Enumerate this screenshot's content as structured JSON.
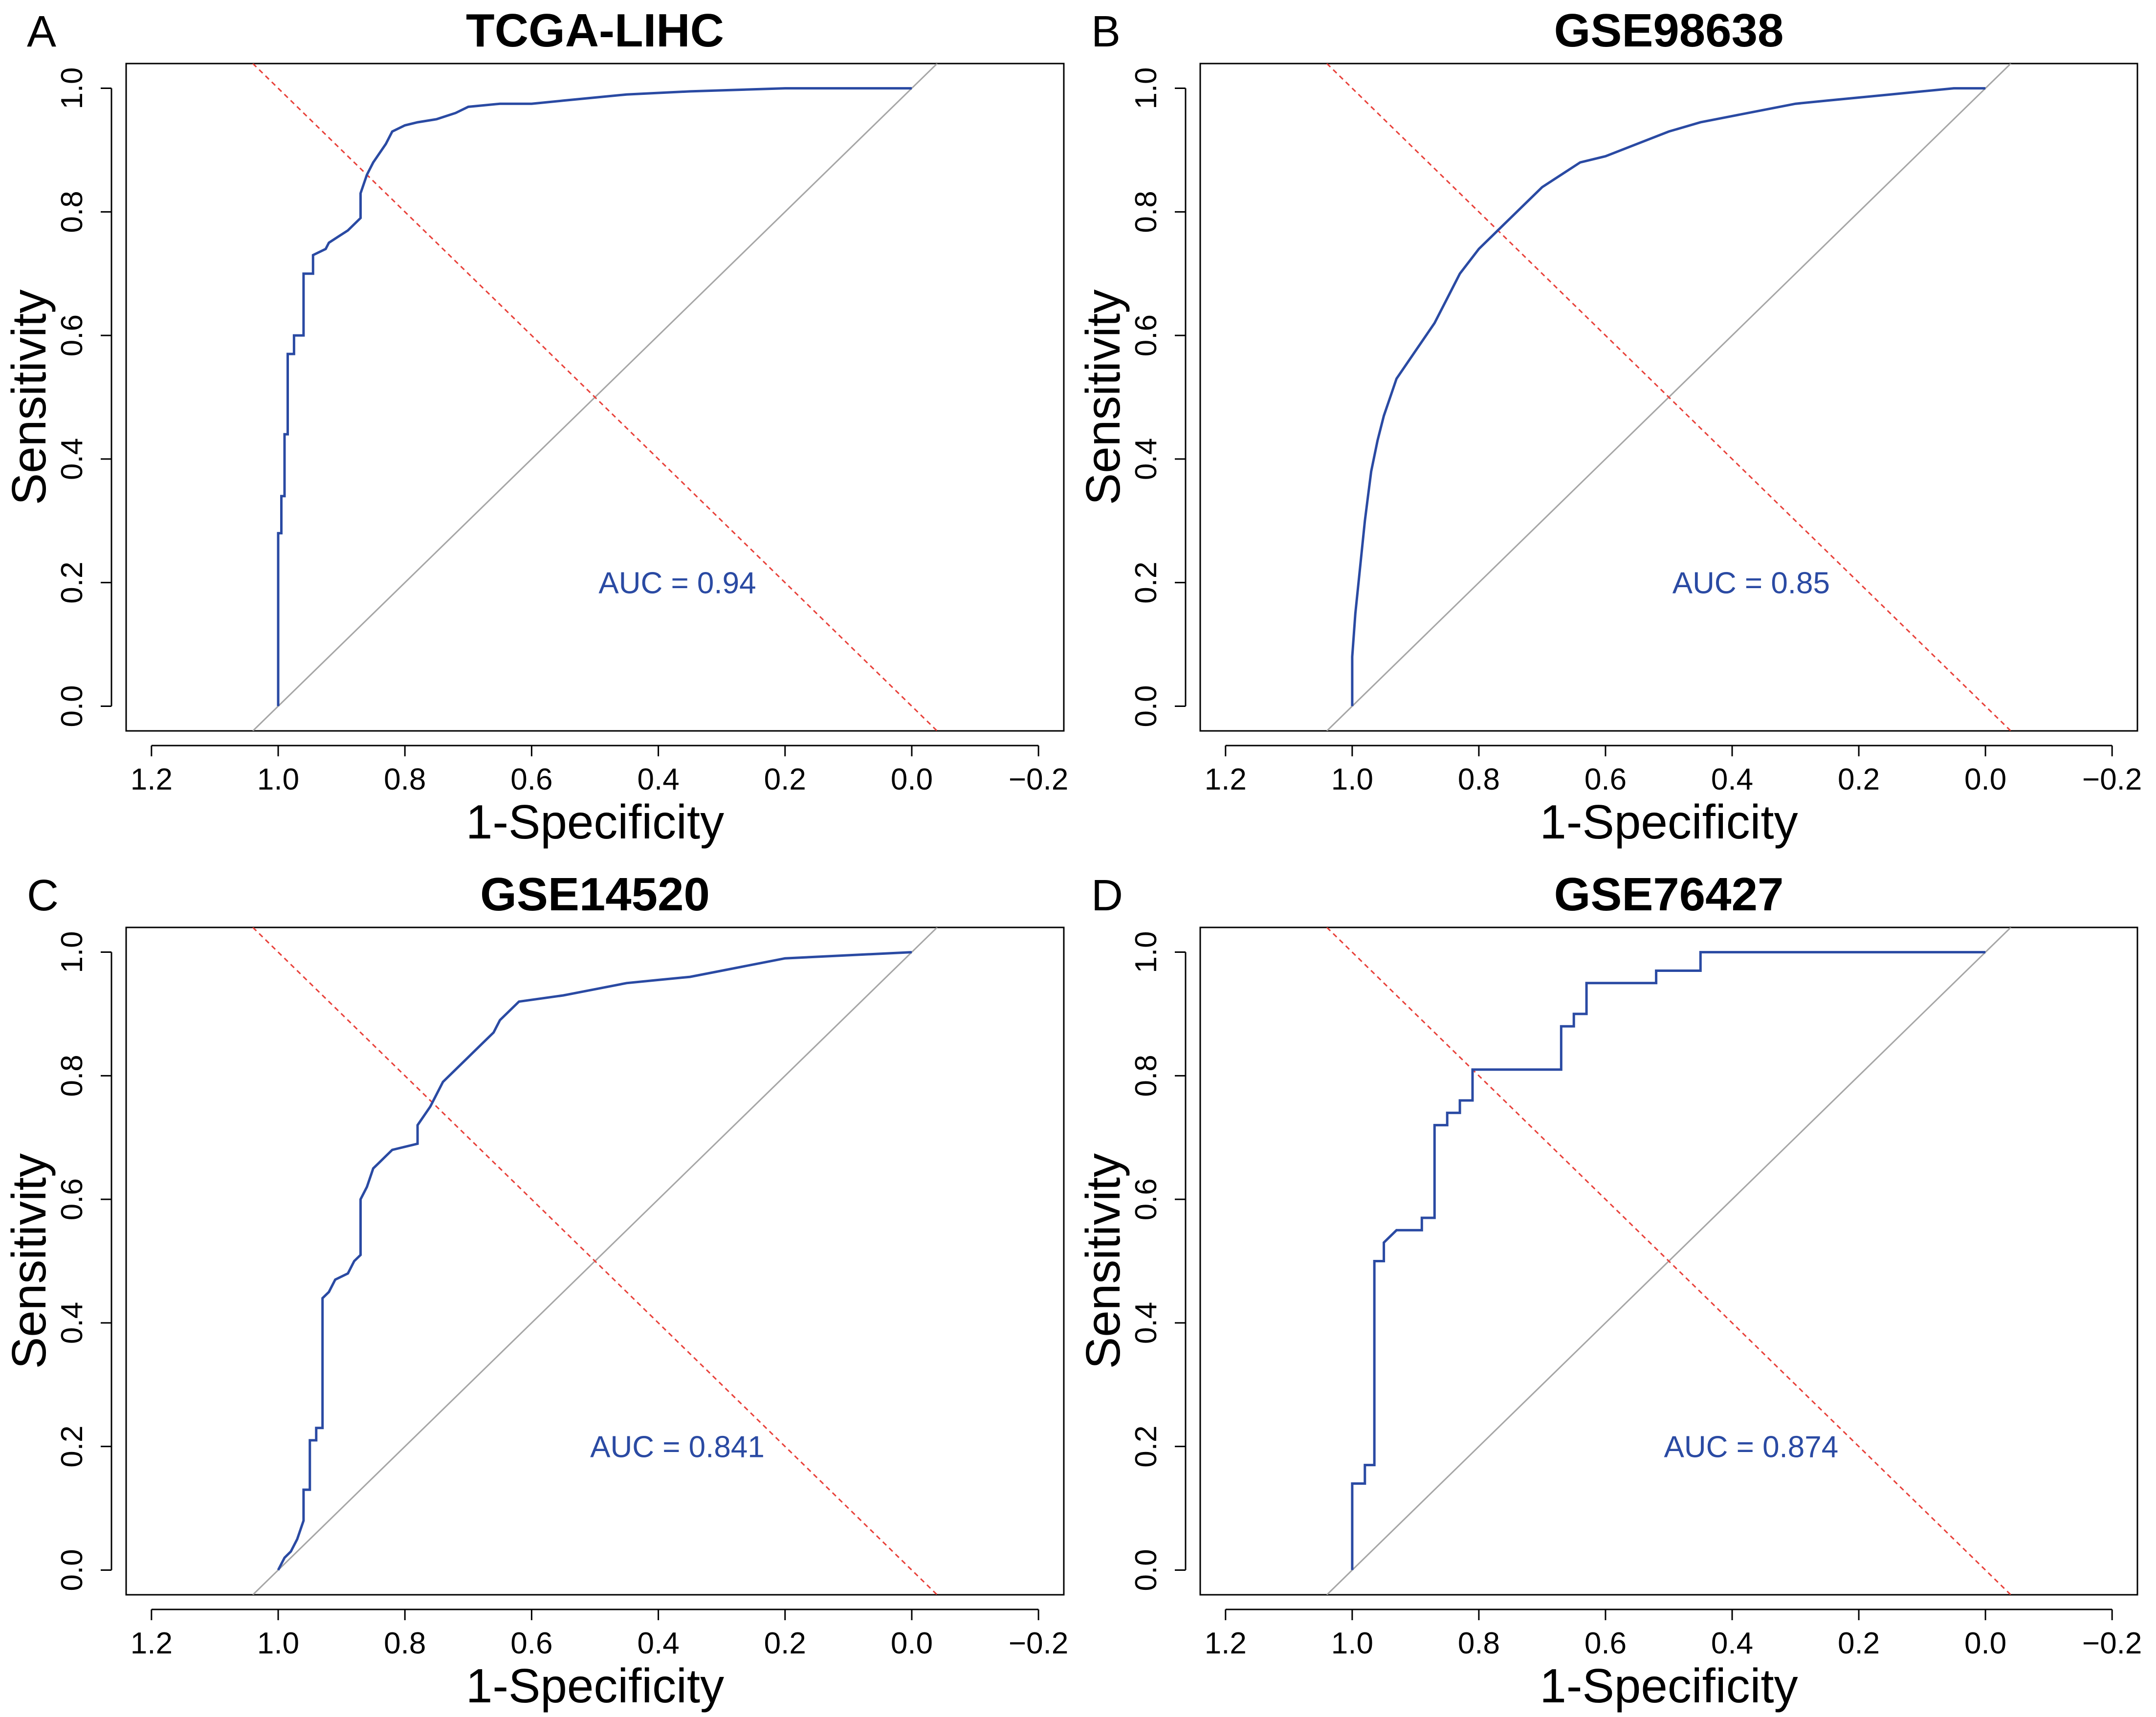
{
  "colors": {
    "roc": "#2a4aa3",
    "diagonal": "#a6a6a6",
    "cutoff": "#e8413a",
    "auc_text": "#2a4aa3"
  },
  "chart_data": [
    {
      "type": "line",
      "panel": "A",
      "title": "TCGA-LIHC",
      "xlabel": "1-Specificity",
      "ylabel": "Sensitivity",
      "xlim": [
        1.2,
        -0.2
      ],
      "ylim": [
        0.0,
        1.0
      ],
      "x_ticks": [
        "1.2",
        "1.0",
        "0.8",
        "0.6",
        "0.4",
        "0.2",
        "0.0",
        "−0.2"
      ],
      "y_ticks": [
        "0.0",
        "0.2",
        "0.4",
        "0.6",
        "0.8",
        "1.0"
      ],
      "auc_text": "AUC = 0.94",
      "series": [
        {
          "name": "ROC",
          "x": [
            1.0,
            1.0,
            0.995,
            0.995,
            0.99,
            0.99,
            0.985,
            0.985,
            0.975,
            0.975,
            0.96,
            0.96,
            0.945,
            0.945,
            0.925,
            0.92,
            0.905,
            0.89,
            0.87,
            0.87,
            0.86,
            0.85,
            0.83,
            0.82,
            0.8,
            0.78,
            0.75,
            0.72,
            0.7,
            0.65,
            0.6,
            0.55,
            0.5,
            0.45,
            0.35,
            0.2,
            0.0
          ],
          "y": [
            0.0,
            0.28,
            0.28,
            0.34,
            0.34,
            0.44,
            0.44,
            0.57,
            0.57,
            0.6,
            0.6,
            0.7,
            0.7,
            0.73,
            0.74,
            0.75,
            0.76,
            0.77,
            0.79,
            0.83,
            0.86,
            0.88,
            0.91,
            0.93,
            0.94,
            0.945,
            0.95,
            0.96,
            0.97,
            0.975,
            0.975,
            0.98,
            0.985,
            0.99,
            0.995,
            1.0,
            1.0
          ]
        }
      ]
    },
    {
      "type": "line",
      "panel": "B",
      "title": "GSE98638",
      "xlabel": "1-Specificity",
      "ylabel": "Sensitivity",
      "xlim": [
        1.2,
        -0.2
      ],
      "ylim": [
        0.0,
        1.0
      ],
      "x_ticks": [
        "1.2",
        "1.0",
        "0.8",
        "0.6",
        "0.4",
        "0.2",
        "0.0",
        "−0.2"
      ],
      "y_ticks": [
        "0.0",
        "0.2",
        "0.4",
        "0.6",
        "0.8",
        "1.0"
      ],
      "auc_text": "AUC = 0.85",
      "series": [
        {
          "name": "ROC",
          "x": [
            1.0,
            1.0,
            0.995,
            0.99,
            0.985,
            0.98,
            0.975,
            0.97,
            0.96,
            0.95,
            0.94,
            0.93,
            0.91,
            0.89,
            0.87,
            0.85,
            0.83,
            0.8,
            0.78,
            0.76,
            0.74,
            0.72,
            0.7,
            0.67,
            0.64,
            0.6,
            0.55,
            0.5,
            0.45,
            0.4,
            0.35,
            0.3,
            0.25,
            0.2,
            0.15,
            0.1,
            0.05,
            0.0
          ],
          "y": [
            0.0,
            0.08,
            0.15,
            0.2,
            0.25,
            0.3,
            0.34,
            0.38,
            0.43,
            0.47,
            0.5,
            0.53,
            0.56,
            0.59,
            0.62,
            0.66,
            0.7,
            0.74,
            0.76,
            0.78,
            0.8,
            0.82,
            0.84,
            0.86,
            0.88,
            0.89,
            0.91,
            0.93,
            0.945,
            0.955,
            0.965,
            0.975,
            0.98,
            0.985,
            0.99,
            0.995,
            1.0,
            1.0
          ]
        }
      ]
    },
    {
      "type": "line",
      "panel": "C",
      "title": "GSE14520",
      "xlabel": "1-Specificity",
      "ylabel": "Sensitivity",
      "xlim": [
        1.2,
        -0.2
      ],
      "ylim": [
        0.0,
        1.0
      ],
      "x_ticks": [
        "1.2",
        "1.0",
        "0.8",
        "0.6",
        "0.4",
        "0.2",
        "0.0",
        "−0.2"
      ],
      "y_ticks": [
        "0.0",
        "0.2",
        "0.4",
        "0.6",
        "0.8",
        "1.0"
      ],
      "auc_text": "AUC = 0.841",
      "series": [
        {
          "name": "ROC",
          "x": [
            1.0,
            0.99,
            0.98,
            0.97,
            0.96,
            0.96,
            0.95,
            0.95,
            0.94,
            0.94,
            0.93,
            0.93,
            0.92,
            0.91,
            0.89,
            0.88,
            0.87,
            0.87,
            0.86,
            0.85,
            0.84,
            0.83,
            0.82,
            0.82,
            0.78,
            0.78,
            0.76,
            0.75,
            0.74,
            0.72,
            0.7,
            0.68,
            0.66,
            0.65,
            0.62,
            0.55,
            0.5,
            0.45,
            0.4,
            0.35,
            0.3,
            0.25,
            0.2,
            0.1,
            0.0
          ],
          "y": [
            0.0,
            0.02,
            0.03,
            0.05,
            0.08,
            0.13,
            0.13,
            0.21,
            0.21,
            0.23,
            0.23,
            0.44,
            0.45,
            0.47,
            0.48,
            0.5,
            0.51,
            0.6,
            0.62,
            0.65,
            0.66,
            0.67,
            0.68,
            0.68,
            0.69,
            0.72,
            0.75,
            0.77,
            0.79,
            0.81,
            0.83,
            0.85,
            0.87,
            0.89,
            0.92,
            0.93,
            0.94,
            0.95,
            0.955,
            0.96,
            0.97,
            0.98,
            0.99,
            0.995,
            1.0
          ]
        }
      ]
    },
    {
      "type": "line",
      "panel": "D",
      "title": "GSE76427",
      "xlabel": "1-Specificity",
      "ylabel": "Sensitivity",
      "xlim": [
        1.2,
        -0.2
      ],
      "ylim": [
        0.0,
        1.0
      ],
      "x_ticks": [
        "1.2",
        "1.0",
        "0.8",
        "0.6",
        "0.4",
        "0.2",
        "0.0",
        "−0.2"
      ],
      "y_ticks": [
        "0.0",
        "0.2",
        "0.4",
        "0.6",
        "0.8",
        "1.0"
      ],
      "auc_text": "AUC = 0.874",
      "series": [
        {
          "name": "ROC",
          "x": [
            1.0,
            1.0,
            0.98,
            0.98,
            0.965,
            0.965,
            0.95,
            0.95,
            0.93,
            0.92,
            0.89,
            0.89,
            0.87,
            0.87,
            0.85,
            0.85,
            0.83,
            0.83,
            0.81,
            0.81,
            0.67,
            0.67,
            0.65,
            0.65,
            0.63,
            0.63,
            0.52,
            0.52,
            0.45,
            0.45,
            0.0
          ],
          "y": [
            0.0,
            0.14,
            0.14,
            0.17,
            0.17,
            0.5,
            0.5,
            0.53,
            0.55,
            0.55,
            0.55,
            0.57,
            0.57,
            0.72,
            0.72,
            0.74,
            0.74,
            0.76,
            0.76,
            0.81,
            0.81,
            0.88,
            0.88,
            0.9,
            0.9,
            0.95,
            0.95,
            0.97,
            0.97,
            1.0,
            1.0
          ]
        }
      ]
    }
  ]
}
